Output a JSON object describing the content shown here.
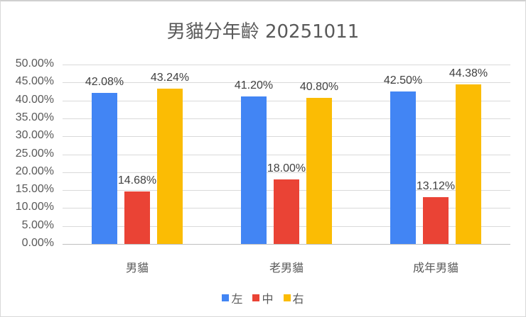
{
  "chart_data": {
    "type": "bar",
    "title": "男貓分年齡 20251011",
    "xlabel": "",
    "ylabel": "",
    "categories": [
      "男貓",
      "老男貓",
      "成年男貓"
    ],
    "series": [
      {
        "name": "左",
        "color": "#4285F4",
        "values": [
          42.08,
          41.2,
          42.5
        ],
        "labels": [
          "42.08%",
          "41.20%",
          "42.50%"
        ]
      },
      {
        "name": "中",
        "color": "#EA4335",
        "values": [
          14.68,
          18.0,
          13.12
        ],
        "labels": [
          "14.68%",
          "18.00%",
          "13.12%"
        ]
      },
      {
        "name": "右",
        "color": "#FBBC04",
        "values": [
          43.24,
          40.8,
          44.38
        ],
        "labels": [
          "43.24%",
          "40.80%",
          "44.38%"
        ]
      }
    ],
    "ylim": [
      0,
      50
    ],
    "yticks": [
      "0.00%",
      "5.00%",
      "10.00%",
      "15.00%",
      "20.00%",
      "25.00%",
      "30.00%",
      "35.00%",
      "40.00%",
      "45.00%",
      "50.00%"
    ],
    "grid": true,
    "legend_position": "bottom"
  }
}
